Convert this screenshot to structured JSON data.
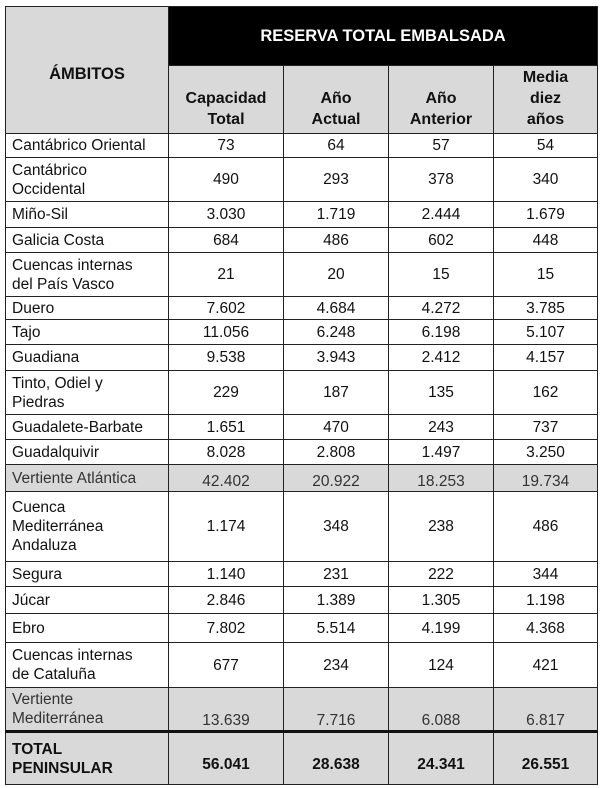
{
  "header": {
    "ambitos": "ÁMBITOS",
    "title": "RESERVA TOTAL EMBALSADA",
    "columns": [
      "Capacidad\nTotal",
      "Año\nActual",
      "Año\nAnterior",
      "Media\ndiez\naños"
    ]
  },
  "rows": [
    {
      "name": "Cantábrico Oriental",
      "values": [
        "73",
        "64",
        "57",
        "54"
      ]
    },
    {
      "name": "Cantábrico\nOccidental",
      "values": [
        "490",
        "293",
        "378",
        "340"
      ]
    },
    {
      "name": "Miño-Sil",
      "values": [
        "3.030",
        "1.719",
        "2.444",
        "1.679"
      ]
    },
    {
      "name": "Galicia Costa",
      "values": [
        "684",
        "486",
        "602",
        "448"
      ]
    },
    {
      "name": "Cuencas internas\ndel País Vasco",
      "values": [
        "21",
        "20",
        "15",
        "15"
      ]
    },
    {
      "name": "Duero",
      "values": [
        "7.602",
        "4.684",
        "4.272",
        "3.785"
      ]
    },
    {
      "name": "Tajo",
      "values": [
        "11.056",
        "6.248",
        "6.198",
        "5.107"
      ]
    },
    {
      "name": "Guadiana",
      "values": [
        "9.538",
        "3.943",
        "2.412",
        "4.157"
      ]
    },
    {
      "name": "Tinto, Odiel y\nPiedras",
      "values": [
        "229",
        "187",
        "135",
        "162"
      ]
    },
    {
      "name": "Guadalete-Barbate",
      "values": [
        "1.651",
        "470",
        "243",
        "737"
      ]
    },
    {
      "name": "Guadalquivir",
      "values": [
        "8.028",
        "2.808",
        "1.497",
        "3.250"
      ]
    },
    {
      "name": "Vertiente Atlántica",
      "values": [
        "42.402",
        "20.922",
        "18.253",
        "19.734"
      ],
      "subtotal": true
    },
    {
      "name": "Cuenca\nMediterránea\nAndaluza",
      "values": [
        "1.174",
        "348",
        "238",
        "486"
      ]
    },
    {
      "name": "Segura",
      "values": [
        "1.140",
        "231",
        "222",
        "344"
      ]
    },
    {
      "name": "Júcar",
      "values": [
        "2.846",
        "1.389",
        "1.305",
        "1.198"
      ]
    },
    {
      "name": "Ebro",
      "values": [
        "7.802",
        "5.514",
        "4.199",
        "4.368"
      ]
    },
    {
      "name": "Cuencas internas\nde Cataluña",
      "values": [
        "677",
        "234",
        "124",
        "421"
      ]
    },
    {
      "name": "Vertiente\nMediterránea",
      "values": [
        "13.639",
        "7.716",
        "6.088",
        "6.817"
      ],
      "subtotal": true
    },
    {
      "name": "TOTAL\nPENINSULAR",
      "values": [
        "56.041",
        "28.638",
        "24.341",
        "26.551"
      ],
      "total": true
    }
  ]
}
